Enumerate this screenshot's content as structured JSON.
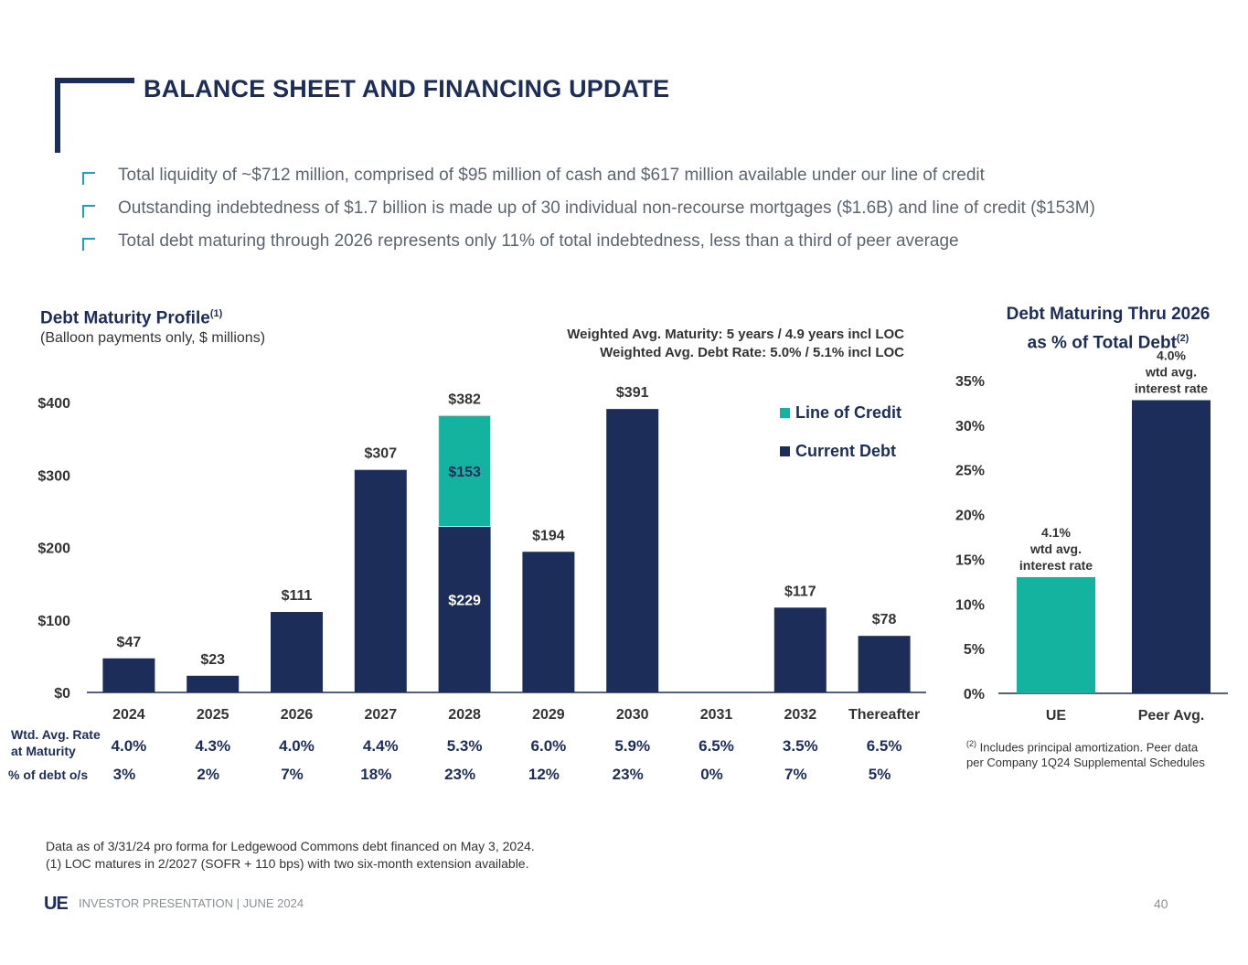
{
  "header": {
    "title": "BALANCE SHEET AND FINANCING UPDATE"
  },
  "bullets": [
    "Total liquidity of ~$712 million, comprised of $95 million of cash and $617 million available under our line of credit",
    "Outstanding indebtedness of $1.7 billion is made up of 30 individual non-recourse mortgages ($1.6B) and line of credit ($153M)",
    "Total debt maturing through 2026 represents only 11% of total indebtedness, less than a third of peer average"
  ],
  "left_section": {
    "title": "Debt Maturity Profile",
    "title_sup": "(1)",
    "subtitle": "(Balloon payments only, $ millions)",
    "wam_line1": "Weighted Avg. Maturity: 5 years / 4.9 years incl LOC",
    "wam_line2": "Weighted Avg. Debt Rate: 5.0% / 5.1% incl LOC",
    "row_label_rate_1": "Wtd. Avg. Rate",
    "row_label_rate_2": "at Maturity",
    "row_label_pct": "% of debt o/s"
  },
  "right_section": {
    "title_line1": "Debt Maturing Thru 2026",
    "title_line2": "as % of Total Debt",
    "title_sup": "(2)",
    "footnote_sup": "(2)",
    "footnote_line1": "Includes principal amortization. Peer data",
    "footnote_line2": "per Company 1Q24 Supplemental Schedules"
  },
  "chart_data": [
    {
      "type": "bar",
      "stacked": true,
      "title": "Debt Maturity Profile",
      "ylabel": "$ millions",
      "ylim": [
        0,
        400
      ],
      "y_ticks": [
        "$0",
        "$100",
        "$200",
        "$300",
        "$400"
      ],
      "categories": [
        "2024",
        "2025",
        "2026",
        "2027",
        "2028",
        "2029",
        "2030",
        "2031",
        "2032",
        "Thereafter"
      ],
      "series": [
        {
          "name": "Current Debt",
          "color": "#1c2d5a",
          "values": [
            47,
            23,
            111,
            307,
            229,
            194,
            391,
            0,
            117,
            78
          ]
        },
        {
          "name": "Line of Credit",
          "color": "#14b3a0",
          "values": [
            0,
            0,
            0,
            0,
            153,
            0,
            0,
            0,
            0,
            0
          ]
        }
      ],
      "total_labels": [
        "$47",
        "$23",
        "$111",
        "$307",
        "$382",
        "$194",
        "$391",
        "",
        "$117",
        "$78"
      ],
      "segment_labels": {
        "current_debt_2028": "$229",
        "line_of_credit_2028": "$153"
      },
      "legend": [
        "Line of Credit",
        "Current Debt"
      ],
      "legend_position": "top-right",
      "wtd_avg_rate": [
        "4.0%",
        "4.3%",
        "4.0%",
        "4.4%",
        "5.3%",
        "6.0%",
        "5.9%",
        "6.5%",
        "3.5%",
        "6.5%"
      ],
      "pct_debt_os": [
        "3%",
        "2%",
        "7%",
        "18%",
        "23%",
        "12%",
        "23%",
        "0%",
        "7%",
        "5%"
      ]
    },
    {
      "type": "bar",
      "title": "Debt Maturing Thru 2026 as % of Total Debt",
      "ylim": [
        0,
        35
      ],
      "y_ticks": [
        "0%",
        "5%",
        "10%",
        "15%",
        "20%",
        "25%",
        "30%",
        "35%"
      ],
      "categories": [
        "UE",
        "Peer Avg."
      ],
      "values": [
        13,
        32.8
      ],
      "colors": [
        "#14b3a0",
        "#1c2d5a"
      ],
      "annotations": [
        [
          "4.1%",
          "wtd avg.",
          "interest rate"
        ],
        [
          "4.0%",
          "wtd avg.",
          "interest rate"
        ]
      ]
    }
  ],
  "footnotes": {
    "line1": "Data as of 3/31/24 pro forma for Ledgewood Commons debt financed on May 3, 2024.",
    "line2": "(1) LOC matures in 2/2027 (SOFR + 110 bps) with two six-month extension available."
  },
  "footer": {
    "logo": "UE",
    "text": "INVESTOR PRESENTATION | JUNE 2024",
    "page": "40"
  }
}
